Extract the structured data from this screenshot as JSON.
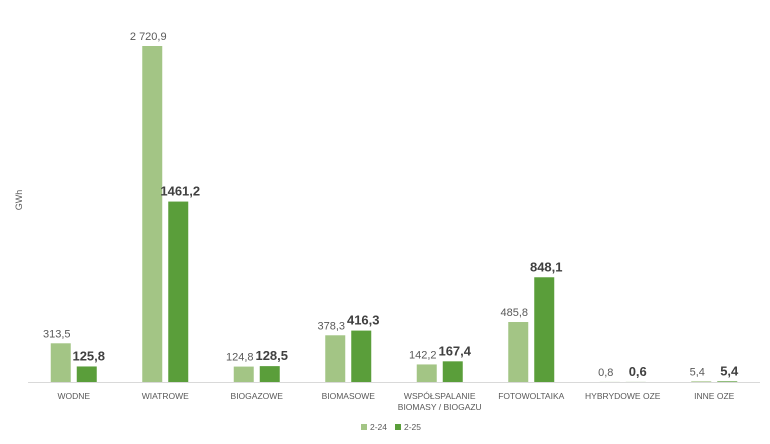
{
  "chart_data": {
    "type": "bar",
    "ylabel": "GWh",
    "categories": [
      [
        "WODNE"
      ],
      [
        "WIATROWE"
      ],
      [
        "BIOGAZOWE"
      ],
      [
        "BIOMASOWE"
      ],
      [
        "WSPÓŁSPALANIE",
        "BIOMASY / BIOGAZU"
      ],
      [
        "FOTOWOLTAIKA"
      ],
      [
        "HYBRYDOWE OZE"
      ],
      [
        "INNE OZE"
      ]
    ],
    "series": [
      {
        "name": "2-24",
        "color": "#a3c585",
        "values": [
          313.5,
          2720.9,
          124.8,
          378.3,
          142.2,
          485.8,
          0.8,
          5.4
        ],
        "labels": [
          "313,5",
          "2 720,9",
          "124,8",
          "378,3",
          "142,2",
          "485,8",
          "0,8",
          "5,4"
        ]
      },
      {
        "name": "2-25",
        "color": "#5a9e3a",
        "values": [
          125.8,
          1461.2,
          128.5,
          416.3,
          167.4,
          848.1,
          0.6,
          5.4
        ],
        "labels": [
          "125,8",
          "1461,2",
          "128,5",
          "416,3",
          "167,4",
          "848,1",
          "0,6",
          "5,4"
        ]
      }
    ],
    "ylim": [
      0,
      2720.9
    ],
    "grid": false,
    "legend": "bottom"
  }
}
